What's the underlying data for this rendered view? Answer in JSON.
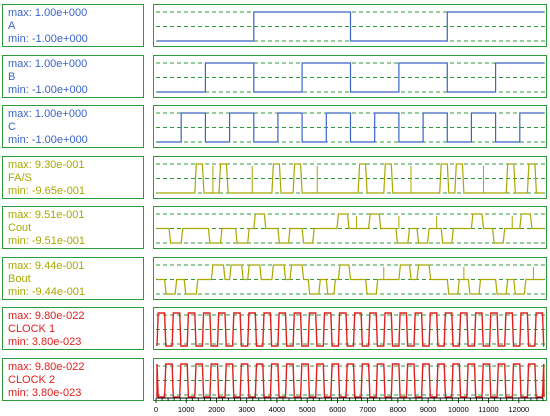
{
  "axis": {
    "min": 0,
    "max": 12800,
    "ticks": [
      0,
      1000,
      2000,
      3000,
      4000,
      5000,
      6000,
      7000,
      8000,
      9000,
      10000,
      11000,
      12000
    ],
    "minor_step": 200
  },
  "traces": [
    {
      "max_text": "max: 1.00e+000",
      "name": "A",
      "min_text": "min: -1.00e+000",
      "color": "#3a64c8",
      "period": 6400,
      "duty": 0.5,
      "phase": 3200,
      "shape": "square"
    },
    {
      "max_text": "max: 1.00e+000",
      "name": "B",
      "min_text": "min: -1.00e+000",
      "color": "#3a64c8",
      "period": 3200,
      "duty": 0.5,
      "phase": 1600,
      "shape": "square"
    },
    {
      "max_text": "max: 1.00e+000",
      "name": "C",
      "min_text": "min: -1.00e+000",
      "color": "#3a64c8",
      "period": 1600,
      "duty": 0.5,
      "phase": 800,
      "shape": "square"
    },
    {
      "max_text": "max: 9.30e-001",
      "name": "FA/S",
      "min_text": "min: -9.65e-001",
      "color": "#a8a800",
      "shape": "pulses",
      "base": "low",
      "pulses": [
        [
          1250,
          1550
        ],
        [
          2050,
          2350
        ],
        [
          3800,
          4100
        ],
        [
          4500,
          4800
        ],
        [
          6650,
          6950
        ],
        [
          7500,
          7800
        ],
        [
          9350,
          9650
        ],
        [
          9850,
          10150
        ],
        [
          11550,
          11850
        ],
        [
          12250,
          12550
        ]
      ],
      "glitches": [
        1850,
        3150,
        5300,
        8400,
        10800
      ]
    },
    {
      "max_text": "max: 9.51e-001",
      "name": "Cout",
      "min_text": "min: -9.51e-001",
      "color": "#a8a800",
      "shape": "pulses",
      "base": "mid",
      "pulses": [
        [
          3200,
          3600
        ],
        [
          5950,
          6350
        ],
        [
          7000,
          7400
        ],
        [
          10400,
          10800
        ],
        [
          12000,
          12400
        ]
      ],
      "dips": [
        [
          400,
          850
        ],
        [
          1700,
          2150
        ],
        [
          2600,
          3050
        ],
        [
          4000,
          4400
        ],
        [
          4800,
          5200
        ],
        [
          7900,
          8350
        ],
        [
          8600,
          9000
        ],
        [
          9400,
          9800
        ],
        [
          11100,
          11500
        ]
      ],
      "glitches": [
        6600,
        8000,
        9250,
        11750
      ]
    },
    {
      "max_text": "max: 9.44e-001",
      "name": "Bout",
      "min_text": "min: -9.44e-001",
      "color": "#a8a800",
      "shape": "pulses",
      "base": "mid",
      "pulses": [
        [
          1800,
          2250
        ],
        [
          2400,
          2850
        ],
        [
          3000,
          3450
        ],
        [
          3800,
          4250
        ],
        [
          4400,
          4850
        ],
        [
          6000,
          6400
        ],
        [
          8000,
          8400
        ],
        [
          8600,
          9050
        ]
      ],
      "dips": [
        [
          250,
          650
        ],
        [
          900,
          1350
        ],
        [
          5000,
          5400
        ],
        [
          5600,
          5900
        ],
        [
          6900,
          7300
        ],
        [
          9600,
          10000
        ],
        [
          10300,
          10700
        ],
        [
          11200,
          11600
        ],
        [
          11800,
          12200
        ]
      ],
      "glitches": [
        7500,
        10150,
        12450
      ]
    },
    {
      "max_text": "max: 9.80e-022",
      "name": "CLOCK 1",
      "min_text": "min: 3.80e-023",
      "color": "#e02020",
      "period": 500,
      "duty": 0.5,
      "phase": 0,
      "shape": "trap"
    },
    {
      "max_text": "max: 9.80e-022",
      "name": "CLOCK 2",
      "min_text": "min: 3.80e-023",
      "color": "#e02020",
      "period": 500,
      "duty": 0.5,
      "phase": 250,
      "shape": "trap"
    }
  ]
}
